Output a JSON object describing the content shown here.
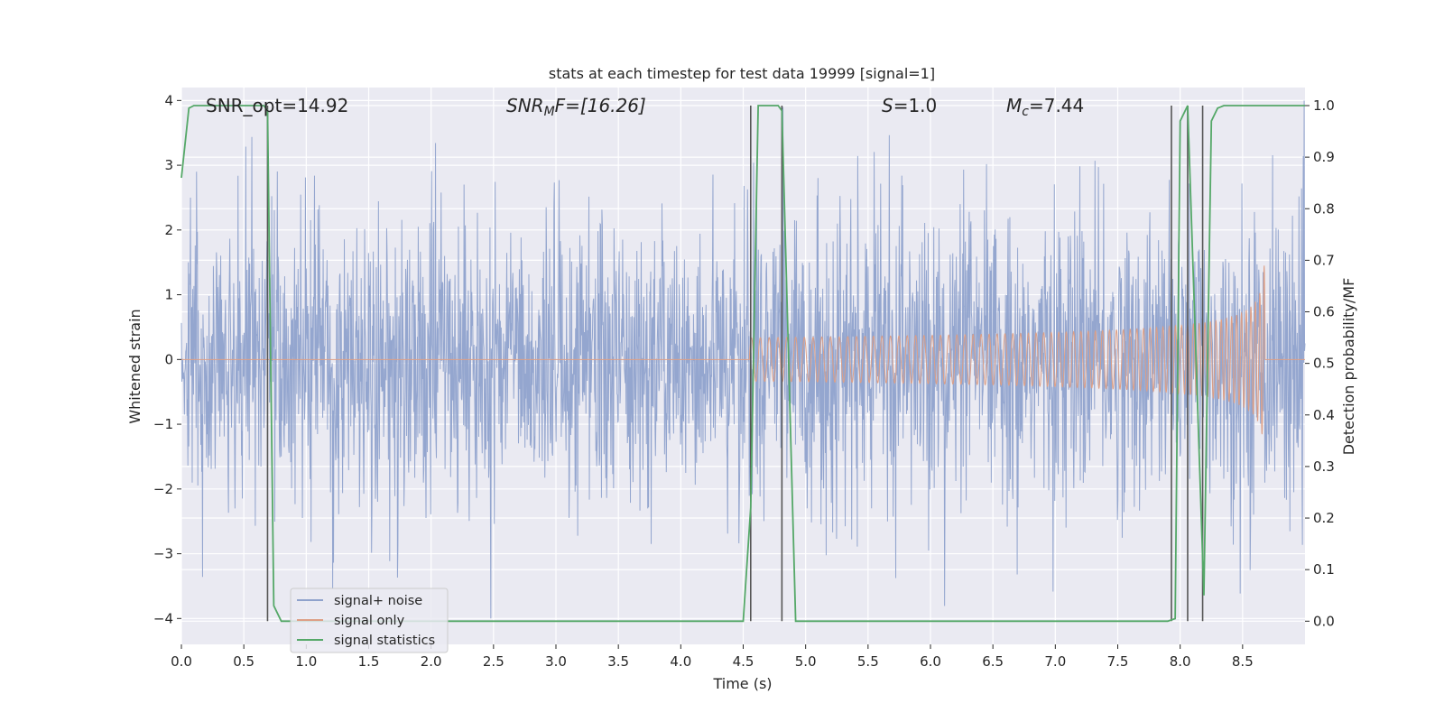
{
  "chart_data": {
    "type": "line",
    "title": "stats at each timestep for test data 19999 [signal=1]",
    "xlabel": "Time (s)",
    "ylabel": "Whitened strain",
    "y2label": "Detection probability/MF",
    "xlim": [
      0.0,
      9.0
    ],
    "ylim": [
      -4.4,
      4.2
    ],
    "y2lim": [
      -0.045,
      1.035
    ],
    "x_ticks": [
      "0.0",
      "0.5",
      "1.0",
      "1.5",
      "2.0",
      "2.5",
      "3.0",
      "3.5",
      "4.0",
      "4.5",
      "5.0",
      "5.5",
      "6.0",
      "6.5",
      "7.0",
      "7.5",
      "8.0",
      "8.5"
    ],
    "y_ticks": [
      "4",
      "3",
      "2",
      "1",
      "0",
      "−1",
      "−2",
      "−3",
      "−4"
    ],
    "y2_ticks": [
      "1.0",
      "0.9",
      "0.8",
      "0.7",
      "0.6",
      "0.5",
      "0.4",
      "0.3",
      "0.2",
      "0.1",
      "0.0"
    ],
    "grid": true,
    "legend_placement": "lower-left",
    "annotations": {
      "snr_opt": "SNR_opt=14.92",
      "snr_mf_base": "SNR",
      "snr_mf_sub": "M",
      "snr_mf_rest": "F=[16.26]",
      "s_base": "S",
      "s_rest": "=1.0",
      "mc_base": "M",
      "mc_sub": "c",
      "mc_rest": "=7.44"
    },
    "series": [
      {
        "name": "signal+ noise",
        "color": "#8fa2cc",
        "kind": "noise",
        "duration": 9.0,
        "typical_abs": 1.5,
        "peak_abs": 4.0
      },
      {
        "name": "signal only",
        "color": "#dd9f86",
        "kind": "chirp",
        "start": 4.55,
        "end": 8.68,
        "amp_start": 0.02,
        "amp_end": 1.9
      },
      {
        "name": "signal statistics",
        "color": "#55a868",
        "axis": "right",
        "x": [
          0.0,
          0.06,
          0.1,
          0.66,
          0.69,
          0.74,
          0.8,
          4.5,
          4.56,
          4.62,
          4.78,
          4.81,
          4.92,
          6.5,
          7.9,
          7.96,
          8.0,
          8.06,
          8.19,
          8.25,
          8.3,
          8.35,
          8.5,
          9.0
        ],
        "y": [
          0.86,
          0.995,
          1.0,
          1.0,
          0.99,
          0.03,
          0.0,
          0.0,
          0.22,
          1.0,
          1.0,
          0.99,
          0.0,
          0.0,
          0.0,
          0.005,
          0.97,
          1.0,
          0.05,
          0.97,
          0.995,
          1.0,
          1.0,
          1.0
        ]
      }
    ],
    "vlines": [
      0.69,
      4.56,
      4.81,
      7.93,
      8.06,
      8.18
    ],
    "vline_color": "#555555"
  }
}
